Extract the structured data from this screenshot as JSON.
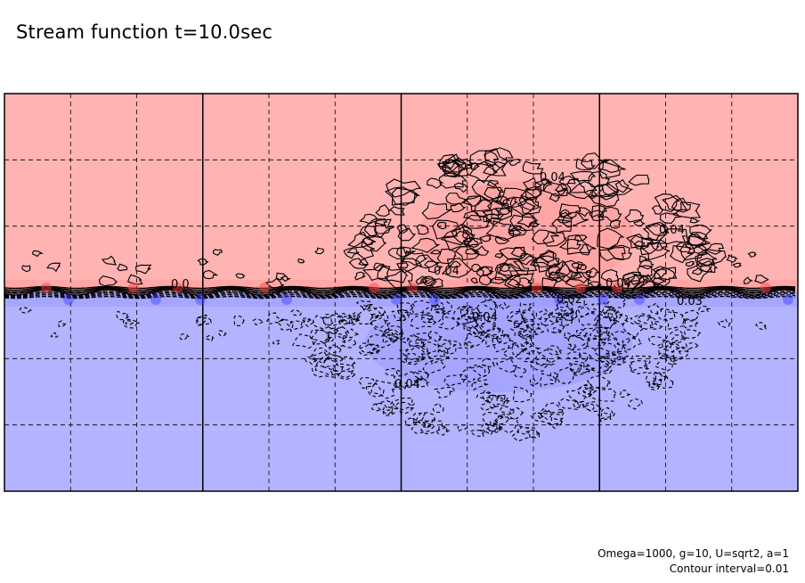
{
  "title": "Stream function t=10.0sec",
  "footer": {
    "params": "Omega=1000, g=10, U=sqrt2, a=1",
    "contour_interval": "Contour interval=0.01"
  },
  "colors": {
    "positive_fill": "#ffb3b3",
    "positive_strong": "#ff9999",
    "negative_fill": "#b3b3ff",
    "negative_strong": "#9999ff",
    "contour": "#000000",
    "extremum_red": "#ff4040",
    "extremum_blue": "#4040ff"
  },
  "contour_labels": [
    {
      "text": "0.04",
      "sign": "positive"
    },
    {
      "text": "0.04",
      "sign": "positive"
    },
    {
      "text": "0.04",
      "sign": "positive"
    },
    {
      "text": "0.04",
      "sign": "positive"
    },
    {
      "text": "0.0",
      "sign": "positive"
    },
    {
      "text": "0.04",
      "sign": "negative"
    },
    {
      "text": "0.04",
      "sign": "negative"
    },
    {
      "text": "0.03",
      "sign": "negative"
    },
    {
      "text": "0.02",
      "sign": "negative"
    }
  ]
}
